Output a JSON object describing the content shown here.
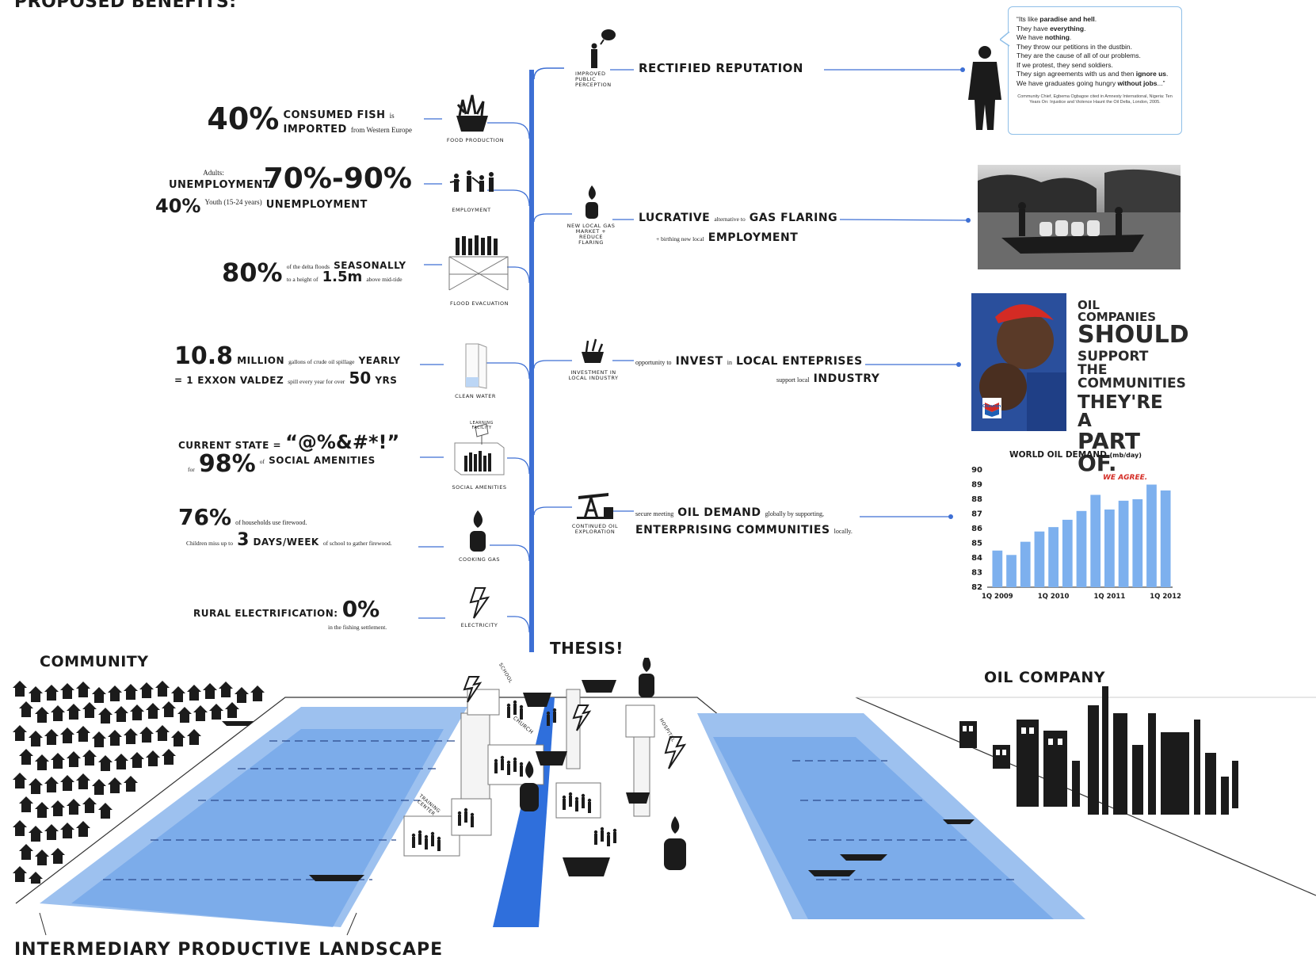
{
  "header": {
    "title_fragment": "PROPOSED BENEFITS:"
  },
  "stats": [
    {
      "id": "fish",
      "big": "40%",
      "parts": [
        "CONSUMED FISH",
        "is",
        "IMPORTED",
        "from Western Europe"
      ],
      "icon_caption": "FOOD PRODUCTION"
    },
    {
      "id": "employment",
      "line1_small": "Adults:",
      "line1_label": "UNEMPLOYMENT",
      "line1_big": "70%-90%",
      "line2_big": "40%",
      "line2_small": "Youth (15-24 years)",
      "line2_label": "UNEMPLOYMENT",
      "icon_caption": "EMPLOYMENT"
    },
    {
      "id": "flood",
      "big": "80%",
      "small1": "of the delta floods",
      "label1": "SEASONALLY",
      "small2": "to a height of",
      "mid": "1.5m",
      "small3": "above mid-tide",
      "icon_caption": "FLOOD EVACUATION"
    },
    {
      "id": "water",
      "big": "10.8",
      "label1": "MILLION",
      "small1": "gallons of crude oil spillage",
      "label2": "YEARLY",
      "prefix": "= 1",
      "label3": "EXXON VALDEZ",
      "small2": "spill every year for over",
      "mid": "50",
      "label4": "YRS",
      "icon_caption": "CLEAN WATER"
    },
    {
      "id": "amenities",
      "label1": "CURRENT STATE =",
      "symbols": "“@%&#*!”",
      "small1": "for",
      "big": "98%",
      "small2": "of",
      "label2": "SOCIAL AMENITIES",
      "icon_caption": "SOCIAL AMENITIES",
      "sign": "LEARNING FACILITY"
    },
    {
      "id": "gas",
      "big": "76%",
      "small1": "of households use firewood.",
      "small2": "Children miss up to",
      "mid": "3",
      "label1": "DAYS/WEEK",
      "small3": "of school to gather firewood.",
      "icon_caption": "COOKING GAS"
    },
    {
      "id": "electricity",
      "label1": "RURAL ELECTRIFICATION:",
      "big": "0%",
      "small1": "in the fishing settlement.",
      "icon_caption": "ELECTRICITY"
    }
  ],
  "benefits": [
    {
      "id": "reputation",
      "icon_caption": "IMPROVED PUBLIC PERCEPTION",
      "label": "RECTIFIED REPUTATION"
    },
    {
      "id": "gas_flaring",
      "icon_caption": "NEW LOCAL GAS MARKET + REDUCE FLARING",
      "label1": "LUCRATIVE",
      "small1": "alternative to",
      "label2": "GAS FLARING",
      "small2": "+ birthing new local",
      "label3": "EMPLOYMENT"
    },
    {
      "id": "invest",
      "icon_caption": "INVESTMENT IN LOCAL INDUSTRY",
      "small1": "opportunity to",
      "label1": "INVEST",
      "small2": "in",
      "label2": "LOCAL ENTEPRISES",
      "small3": "support local",
      "label3": "INDUSTRY"
    },
    {
      "id": "oil_demand",
      "icon_caption": "CONTINUED OIL EXPLORATION",
      "small1": "secure meeting",
      "label1": "OIL DEMAND",
      "small2": "globally by supporting,",
      "label2": "ENTERPRISING COMMUNITIES",
      "small3": "locally."
    }
  ],
  "quote": {
    "lines": [
      {
        "pre": "“Its like ",
        "b": "paradise and hell",
        "post": "."
      },
      {
        "pre": "They have ",
        "b": "everything",
        "post": "."
      },
      {
        "pre": "We have ",
        "b": "nothing",
        "post": "."
      },
      {
        "pre": "They throw our petitions in the dustbin.",
        "b": "",
        "post": ""
      },
      {
        "pre": "They are the cause of all of our problems.",
        "b": "",
        "post": ""
      },
      {
        "pre": "If we protest, they send soldiers.",
        "b": "",
        "post": ""
      },
      {
        "pre": "They sign agreements with us and then ",
        "b": "ignore us",
        "post": "."
      },
      {
        "pre": "We have graduates going hungry ",
        "b": "without jobs",
        "post": "...”"
      }
    ],
    "citation": "Community Chief, Egbema Ogbagoe cited in Amnesty International, Nigeria: Ten Years On: Injustice and Violence Haunt the Oil Delta, London, 2005."
  },
  "poster": {
    "lines": [
      "OIL COMPANIES",
      "SHOULD",
      "SUPPORT THE",
      "COMMUNITIES",
      "THEY'RE A",
      "PART OF."
    ],
    "tagline": "WE AGREE.",
    "brand": "Chevron"
  },
  "chart_data": {
    "type": "bar",
    "title": "WORLD OIL DEMAND",
    "title_unit": "(mb/day)",
    "y_ticks": [
      90,
      89,
      88,
      87,
      86,
      85,
      84,
      83,
      82
    ],
    "ylim": [
      82,
      90
    ],
    "x_tick_labels": [
      "1Q 2009",
      "1Q 2010",
      "1Q 2011",
      "1Q 2012"
    ],
    "values": [
      84.5,
      84.2,
      85.1,
      85.8,
      86.1,
      86.6,
      87.2,
      88.3,
      87.3,
      87.9,
      88.0,
      89.0,
      88.6
    ],
    "color": "#7db0ee"
  },
  "labels": {
    "thesis": "THESIS!",
    "community": "COMMUNITY",
    "oil_company": "OIL COMPANY",
    "landscape": "INTERMEDIARY PRODUCTIVE LANDSCAPE"
  },
  "landscape_signs": [
    "SCHOOL",
    "CHURCH",
    "TRAINING CENTER",
    "HOSPITAL"
  ],
  "colors": {
    "accent": "#3d6fd4",
    "water": "#2f6fdc",
    "ink": "#1b1b1b"
  }
}
